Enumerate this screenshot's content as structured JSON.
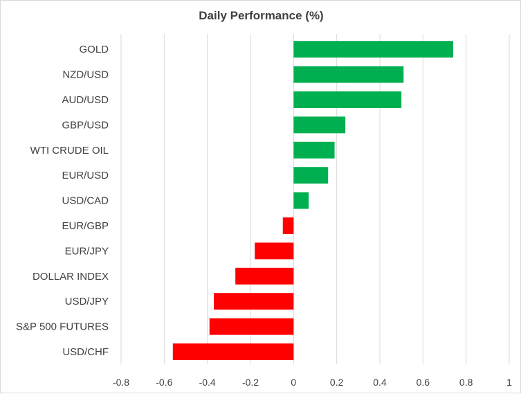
{
  "chart_data": {
    "type": "bar",
    "orientation": "horizontal",
    "title": "Daily Performance (%)",
    "xlabel": "",
    "ylabel": "",
    "xlim": [
      -0.8,
      1
    ],
    "x_ticks": [
      -0.8,
      -0.6,
      -0.4,
      -0.2,
      0,
      0.2,
      0.4,
      0.6,
      0.8,
      1
    ],
    "x_tick_labels": [
      "-0.8",
      "-0.6",
      "-0.4",
      "-0.2",
      "0",
      "0.2",
      "0.4",
      "0.6",
      "0.8",
      "1"
    ],
    "grid": "vertical",
    "legend": "none",
    "categories": [
      "GOLD",
      "NZD/USD",
      "AUD/USD",
      "GBP/USD",
      "WTI CRUDE OIL",
      "EUR/USD",
      "USD/CAD",
      "EUR/GBP",
      "EUR/JPY",
      "DOLLAR INDEX",
      "USD/JPY",
      "S&P 500 FUTURES",
      "USD/CHF"
    ],
    "values": [
      0.74,
      0.51,
      0.5,
      0.24,
      0.19,
      0.16,
      0.07,
      -0.05,
      -0.18,
      -0.27,
      -0.37,
      -0.39,
      -0.56
    ],
    "colors": {
      "positive": "#00b050",
      "negative": "#ff0000",
      "grid": "#d9d9d9",
      "text": "#404040"
    }
  }
}
